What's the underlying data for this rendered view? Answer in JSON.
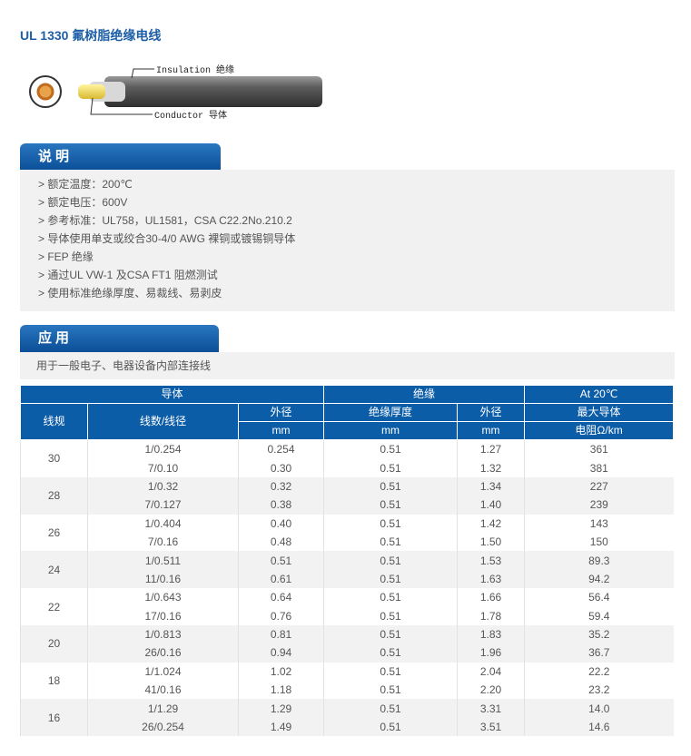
{
  "header": {
    "title": "UL 1330 氟树脂绝缘电线"
  },
  "diagram": {
    "insulation_label": "Insulation 绝缘",
    "conductor_label": "Conductor 导体"
  },
  "description": {
    "heading": "说明",
    "items": [
      "> 额定温度：200℃",
      "> 额定电压：600V",
      "> 参考标准：UL758，UL1581，CSA  C22.2No.210.2",
      "> 导体使用单支或绞合30-4/0 AWG 裸铜或镀锡铜导体",
      "> FEP 绝缘",
      "> 通过UL VW-1 及CSA FT1 阻燃测试",
      "> 使用标准绝缘厚度、易裁线、易剥皮"
    ]
  },
  "application": {
    "heading": "应用",
    "text": "用于一般电子、电器设备内部连接线"
  },
  "table": {
    "header": {
      "conductor": "导体",
      "insulation": "绝缘",
      "resistance": [
        "At 20℃",
        "最大导体",
        "电阻Ω/km"
      ],
      "gauge": "线规",
      "strand": "线数/线径",
      "conductor_od": [
        "外径",
        "mm"
      ],
      "thickness": [
        "绝缘厚度",
        "mm"
      ],
      "insulation_od": [
        "外径",
        "mm"
      ]
    },
    "rows": [
      {
        "gauge": "30",
        "lines": [
          [
            "1/0.254",
            "0.254",
            "0.51",
            "1.27",
            "361"
          ],
          [
            "7/0.10",
            "0.30",
            "0.51",
            "1.32",
            "381"
          ]
        ]
      },
      {
        "gauge": "28",
        "lines": [
          [
            "1/0.32",
            "0.32",
            "0.51",
            "1.34",
            "227"
          ],
          [
            "7/0.127",
            "0.38",
            "0.51",
            "1.40",
            "239"
          ]
        ]
      },
      {
        "gauge": "26",
        "lines": [
          [
            "1/0.404",
            "0.40",
            "0.51",
            "1.42",
            "143"
          ],
          [
            "7/0.16",
            "0.48",
            "0.51",
            "1.50",
            "150"
          ]
        ]
      },
      {
        "gauge": "24",
        "lines": [
          [
            "1/0.511",
            "0.51",
            "0.51",
            "1.53",
            "89.3"
          ],
          [
            "11/0.16",
            "0.61",
            "0.51",
            "1.63",
            "94.2"
          ]
        ]
      },
      {
        "gauge": "22",
        "lines": [
          [
            "1/0.643",
            "0.64",
            "0.51",
            "1.66",
            "56.4"
          ],
          [
            "17/0.16",
            "0.76",
            "0.51",
            "1.78",
            "59.4"
          ]
        ]
      },
      {
        "gauge": "20",
        "lines": [
          [
            "1/0.813",
            "0.81",
            "0.51",
            "1.83",
            "35.2"
          ],
          [
            "26/0.16",
            "0.94",
            "0.51",
            "1.96",
            "36.7"
          ]
        ]
      },
      {
        "gauge": "18",
        "lines": [
          [
            "1/1.024",
            "1.02",
            "0.51",
            "2.04",
            "22.2"
          ],
          [
            "41/0.16",
            "1.18",
            "0.51",
            "2.20",
            "23.2"
          ]
        ]
      },
      {
        "gauge": "16",
        "lines": [
          [
            "1/1.29",
            "1.29",
            "0.51",
            "3.31",
            "14.0"
          ],
          [
            "26/0.254",
            "1.49",
            "0.51",
            "3.51",
            "14.6"
          ]
        ]
      }
    ]
  }
}
